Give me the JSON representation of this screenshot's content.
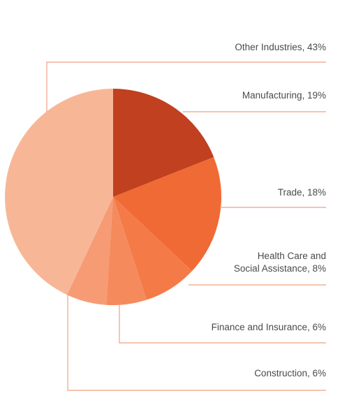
{
  "chart_data": {
    "type": "pie",
    "start_angle_deg": 0,
    "direction": "clockwise",
    "slices": [
      {
        "label_lines": [
          "Manufacturing, 19%"
        ],
        "value": 19,
        "color": "#c0401f"
      },
      {
        "label_lines": [
          "Trade, 18%"
        ],
        "value": 18,
        "color": "#f06a35"
      },
      {
        "label_lines": [
          "Health Care and",
          "Social Assistance, 8%"
        ],
        "value": 8,
        "color": "#f47a48"
      },
      {
        "label_lines": [
          "Finance and Insurance, 6%"
        ],
        "value": 6,
        "color": "#f58a5d"
      },
      {
        "label_lines": [
          "Construction, 6%"
        ],
        "value": 6,
        "color": "#f69b74"
      },
      {
        "label_lines": [
          "Other Industries, 43%"
        ],
        "value": 43,
        "color": "#f7b797"
      }
    ],
    "leader_color": "#f0a080",
    "legend": "right"
  }
}
